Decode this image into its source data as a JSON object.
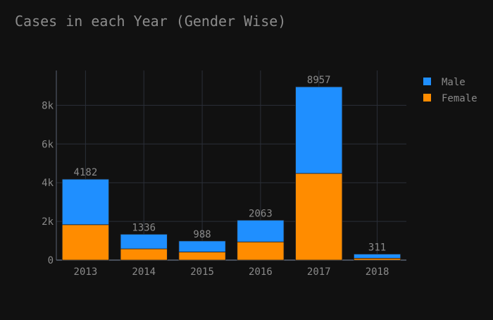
{
  "colors": {
    "background": "#111111",
    "grid": "#2b2f38",
    "axis_line": "#5a6473",
    "text": "#8a8a8a",
    "title": "#8c8c8c",
    "male": "#1f8fff",
    "female": "#ff8c00",
    "bar_edge": "#222222"
  },
  "chart_data": {
    "type": "bar",
    "stacked": true,
    "title": "Cases in each Year (Gender Wise)",
    "xlabel": "",
    "ylabel": "",
    "categories": [
      "2013",
      "2014",
      "2015",
      "2016",
      "2017",
      "2018"
    ],
    "series": [
      {
        "name": "Female",
        "color_key": "female",
        "values": [
          1830,
          580,
          420,
          940,
          4480,
          95
        ]
      },
      {
        "name": "Male",
        "color_key": "male",
        "values": [
          2352,
          756,
          568,
          1123,
          4477,
          216
        ]
      }
    ],
    "totals": [
      4182,
      1336,
      988,
      2063,
      8957,
      311
    ],
    "total_labels": [
      "4182",
      "1336",
      "988",
      "2063",
      "8957",
      "311"
    ],
    "ylim": [
      0,
      9800
    ],
    "yticks": [
      0,
      2000,
      4000,
      6000,
      8000
    ],
    "ytick_labels": [
      "0",
      "2k",
      "4k",
      "6k",
      "8k"
    ],
    "legend": {
      "placement": "top-right",
      "order": [
        "Male",
        "Female"
      ]
    },
    "grid": true
  }
}
